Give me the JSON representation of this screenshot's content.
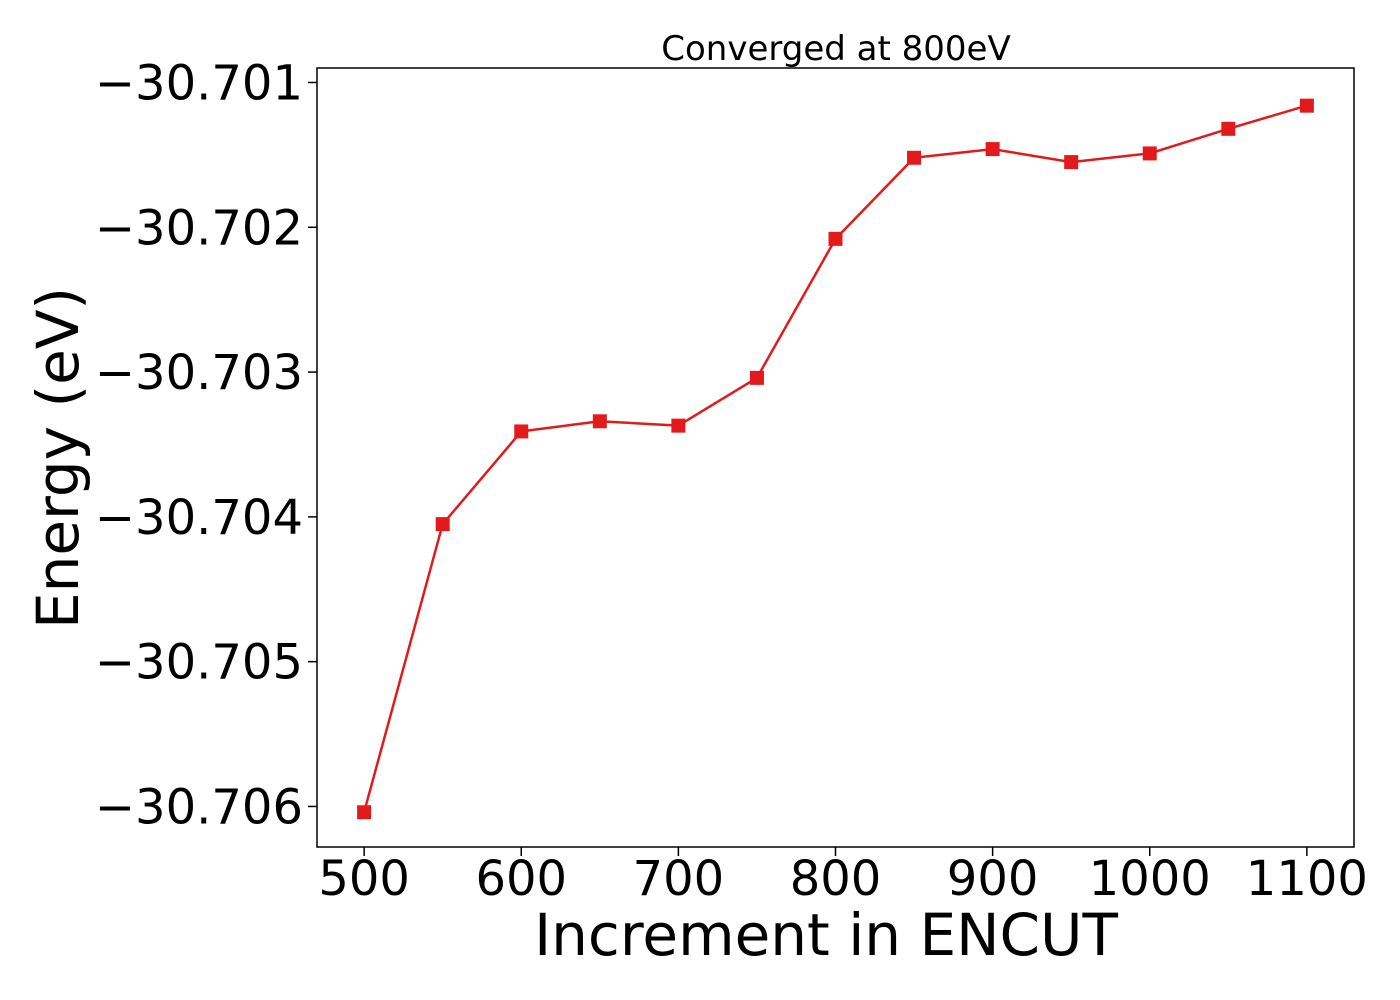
{
  "chart_data": {
    "type": "line",
    "title": "Converged at 800eV",
    "xlabel": "Increment in ENCUT",
    "ylabel": "Energy (eV)",
    "x": [
      500,
      550,
      600,
      650,
      700,
      750,
      800,
      850,
      900,
      950,
      1000,
      1050,
      1100
    ],
    "series": [
      {
        "values": [
          -30.70604,
          -30.70405,
          -30.70341,
          -30.70334,
          -30.70337,
          -30.70304,
          -30.70208,
          -30.70152,
          -30.70146,
          -30.70155,
          -30.70149,
          -30.70132,
          -30.70116
        ],
        "color": "#e31a1c",
        "marker": "square"
      }
    ],
    "xticks": [
      500,
      600,
      700,
      800,
      900,
      1000,
      1100
    ],
    "xtick_labels": [
      "500",
      "600",
      "700",
      "800",
      "900",
      "1000",
      "1100"
    ],
    "yticks": [
      -30.706,
      -30.705,
      -30.704,
      -30.703,
      -30.702,
      -30.701
    ],
    "ytick_labels": [
      "−30.706",
      "−30.705",
      "−30.704",
      "−30.703",
      "−30.702",
      "−30.701"
    ],
    "xlim": [
      470,
      1130
    ],
    "ylim": [
      -30.70628,
      -30.7009
    ],
    "grid": false,
    "legend": "none"
  }
}
